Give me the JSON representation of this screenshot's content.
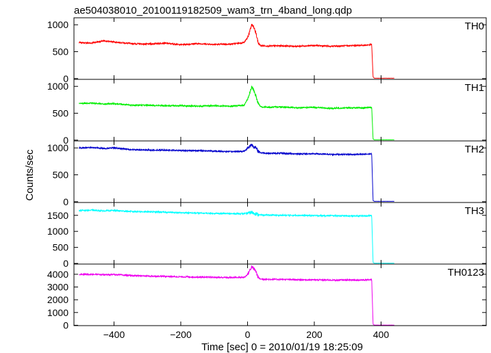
{
  "title": "ae504038010_20100119182509_wam3_trn_4band_long.qdp",
  "xlabel": "Time [sec] 0 = 2010/01/19 18:25:09",
  "ylabel": "Counts/sec",
  "chart_data": {
    "type": "line",
    "title": "ae504038010_20100119182509_wam3_trn_4band_long.qdp",
    "xlabel": "Time [sec] 0 = 2010/01/19 18:25:09",
    "ylabel": "Counts/sec",
    "xlim": [
      -520,
      715
    ],
    "x_ticks": [
      -400,
      -200,
      0,
      200,
      400
    ],
    "x_tick_labels": [
      "−400",
      "−200",
      "0",
      "200",
      "400"
    ],
    "grid": false,
    "panels": [
      {
        "name": "TH0",
        "color": "#ff0000",
        "ylim": [
          -15,
          1130
        ],
        "y_ticks": [
          0,
          500,
          1000
        ],
        "y_tick_labels": [
          "0",
          "500",
          "1000"
        ],
        "series": [
          {
            "name": "TH0",
            "x": [
              -505,
              -470,
              -430,
              -400,
              -350,
              -300,
              -250,
              -200,
              -150,
              -100,
              -50,
              -10,
              0,
              8,
              12,
              18,
              25,
              32,
              40,
              60,
              100,
              150,
              200,
              250,
              300,
              350,
              372,
              376,
              380,
              400,
              440
            ],
            "y": [
              670,
              660,
              700,
              680,
              650,
              640,
              660,
              630,
              650,
              635,
              640,
              670,
              760,
              900,
              1000,
              960,
              850,
              660,
              610,
              605,
              610,
              600,
              615,
              600,
              610,
              620,
              630,
              30,
              5,
              5,
              5
            ]
          }
        ]
      },
      {
        "name": "TH1",
        "color": "#00ee00",
        "ylim": [
          -15,
          1130
        ],
        "y_ticks": [
          0,
          500,
          1000
        ],
        "y_tick_labels": [
          "0",
          "500",
          "1000"
        ],
        "series": [
          {
            "name": "TH1",
            "x": [
              -505,
              -470,
              -430,
              -400,
              -350,
              -300,
              -250,
              -200,
              -150,
              -100,
              -50,
              -10,
              0,
              8,
              12,
              18,
              25,
              32,
              40,
              60,
              100,
              150,
              200,
              250,
              300,
              350,
              372,
              376,
              380,
              400,
              440
            ],
            "y": [
              680,
              690,
              670,
              680,
              650,
              650,
              640,
              640,
              630,
              640,
              630,
              650,
              760,
              900,
              980,
              940,
              820,
              680,
              620,
              610,
              620,
              600,
              610,
              590,
              600,
              600,
              610,
              20,
              5,
              5,
              5
            ]
          }
        ]
      },
      {
        "name": "TH2",
        "color": "#0000cc",
        "ylim": [
          -15,
          1130
        ],
        "y_ticks": [
          0,
          500,
          1000
        ],
        "y_tick_labels": [
          "0",
          "500",
          "1000"
        ],
        "series": [
          {
            "name": "TH2",
            "x": [
              -505,
              -470,
              -430,
              -400,
              -350,
              -300,
              -250,
              -200,
              -150,
              -100,
              -50,
              -10,
              0,
              8,
              12,
              18,
              25,
              32,
              40,
              60,
              100,
              150,
              200,
              250,
              300,
              350,
              372,
              376,
              380,
              400,
              440
            ],
            "y": [
              1000,
              1010,
              990,
              1000,
              970,
              960,
              960,
              950,
              950,
              940,
              930,
              940,
              990,
              1040,
              1060,
              1030,
              1000,
              940,
              910,
              900,
              900,
              890,
              890,
              880,
              880,
              880,
              890,
              20,
              5,
              5,
              5
            ]
          }
        ]
      },
      {
        "name": "TH3",
        "color": "#00ffff",
        "ylim": [
          -20,
          1900
        ],
        "y_ticks": [
          0,
          500,
          1000,
          1500
        ],
        "y_tick_labels": [
          "0",
          "500",
          "1000",
          "1500"
        ],
        "series": [
          {
            "name": "TH3",
            "x": [
              -505,
              -470,
              -430,
              -400,
              -350,
              -300,
              -250,
              -200,
              -150,
              -100,
              -50,
              -10,
              0,
              8,
              12,
              18,
              25,
              32,
              40,
              60,
              100,
              150,
              200,
              250,
              300,
              350,
              372,
              376,
              380,
              400,
              440
            ],
            "y": [
              1650,
              1660,
              1640,
              1650,
              1620,
              1610,
              1600,
              1580,
              1570,
              1560,
              1550,
              1550,
              1560,
              1580,
              1600,
              1570,
              1550,
              1520,
              1510,
              1510,
              1500,
              1500,
              1490,
              1490,
              1480,
              1480,
              1490,
              30,
              5,
              5,
              5
            ]
          }
        ]
      },
      {
        "name": "TH0123",
        "color": "#ee00ee",
        "ylim": [
          -30,
          4800
        ],
        "y_ticks": [
          0,
          1000,
          2000,
          3000,
          4000
        ],
        "y_tick_labels": [
          "0",
          "1000",
          "2000",
          "3000",
          "4000"
        ],
        "series": [
          {
            "name": "TH0123",
            "x": [
              -505,
              -470,
              -430,
              -400,
              -350,
              -300,
              -250,
              -200,
              -150,
              -100,
              -50,
              -10,
              0,
              8,
              12,
              18,
              25,
              32,
              40,
              60,
              100,
              150,
              200,
              250,
              300,
              350,
              372,
              376,
              380,
              400,
              440
            ],
            "y": [
              3990,
              4000,
              3970,
              3980,
              3900,
              3860,
              3840,
              3800,
              3780,
              3760,
              3740,
              3760,
              3980,
              4350,
              4600,
              4450,
              4250,
              3740,
              3620,
              3600,
              3600,
              3570,
              3560,
              3540,
              3550,
              3550,
              3600,
              80,
              10,
              10,
              10
            ]
          }
        ]
      }
    ]
  }
}
